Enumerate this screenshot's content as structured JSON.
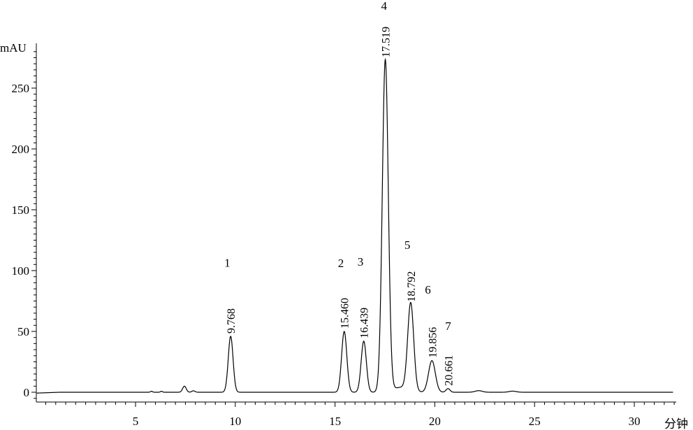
{
  "chart_data": {
    "type": "line",
    "title": "",
    "ylabel": "mAU",
    "xlabel": "分钟",
    "xlim": [
      0,
      32.0
    ],
    "ylim": [
      -8,
      290
    ],
    "x_ticks": [
      5,
      10,
      15,
      20,
      25,
      30
    ],
    "y_ticks": [
      0,
      50,
      100,
      150,
      200,
      250
    ],
    "grid": false,
    "legend": "none",
    "line_color": "#000000",
    "series": [
      {
        "baseline": 0,
        "peaks": [
          {
            "label": "1",
            "rt": 9.768,
            "rt_label": "9.768",
            "height": 46,
            "width": 0.12
          },
          {
            "label": "2",
            "rt": 15.46,
            "rt_label": "15.460",
            "height": 50,
            "width": 0.13
          },
          {
            "label": "3",
            "rt": 16.439,
            "rt_label": "16.439",
            "height": 42,
            "width": 0.13
          },
          {
            "label": "4",
            "rt": 17.519,
            "rt_label": "17.519",
            "height": 273,
            "width": 0.15
          },
          {
            "label": "5",
            "rt": 18.792,
            "rt_label": "18.792",
            "height": 72,
            "width": 0.15
          },
          {
            "label": "6",
            "rt": 19.856,
            "rt_label": "19.856",
            "height": 26,
            "width": 0.17
          },
          {
            "label": "7",
            "rt": 20.661,
            "rt_label": "20.661",
            "height": 3,
            "width": 0.1
          }
        ],
        "minor_peaks": [
          {
            "rt": 5.8,
            "height": 0.8,
            "width": 0.05
          },
          {
            "rt": 6.3,
            "height": 0.8,
            "width": 0.05
          },
          {
            "rt": 7.45,
            "height": 5,
            "width": 0.09
          },
          {
            "rt": 7.9,
            "height": 1.2,
            "width": 0.08
          },
          {
            "rt": 18.3,
            "height": 4,
            "width": 0.4
          },
          {
            "rt": 22.2,
            "height": 1.3,
            "width": 0.18
          },
          {
            "rt": 23.9,
            "height": 0.9,
            "width": 0.18
          }
        ]
      }
    ]
  }
}
